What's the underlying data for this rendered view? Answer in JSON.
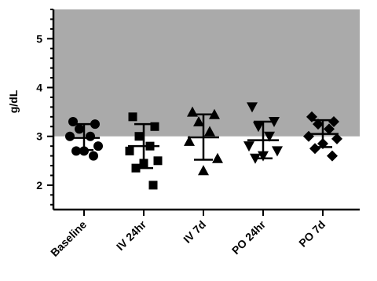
{
  "chart_data": {
    "type": "scatter",
    "ylabel": "g/dL",
    "ylim": [
      1.5,
      5.6
    ],
    "y_ticks": [
      2,
      3,
      4,
      5
    ],
    "y_tick_labels": [
      "2",
      "3",
      "4",
      "5"
    ],
    "shaded_band": {
      "from": 3.0,
      "to": 5.6,
      "color": "#aaaaaa"
    },
    "categories": [
      "Baseline",
      "IV 24hr",
      "IV 7d",
      "PO 24hr",
      "PO 7d"
    ],
    "series": [
      {
        "category": "Baseline",
        "marker": "circle",
        "points": [
          3.3,
          3.25,
          3.15,
          3.0,
          3.0,
          2.8,
          2.7,
          2.7,
          2.6
        ],
        "mean": 2.97,
        "sd_low": 2.72,
        "sd_high": 3.25
      },
      {
        "category": "IV 24hr",
        "marker": "square",
        "points": [
          3.4,
          3.2,
          3.0,
          2.8,
          2.7,
          2.5,
          2.45,
          2.35,
          2.0
        ],
        "mean": 2.8,
        "sd_low": 2.35,
        "sd_high": 3.25
      },
      {
        "category": "IV 7d",
        "marker": "triangle-up",
        "points": [
          3.5,
          3.45,
          3.3,
          3.1,
          2.9,
          2.55,
          2.3
        ],
        "mean": 2.98,
        "sd_low": 2.52,
        "sd_high": 3.45
      },
      {
        "category": "PO 24hr",
        "marker": "triangle-down",
        "points": [
          3.6,
          3.3,
          3.2,
          3.0,
          2.8,
          2.7,
          2.6,
          2.55
        ],
        "mean": 2.92,
        "sd_low": 2.55,
        "sd_high": 3.3
      },
      {
        "category": "PO 7d",
        "marker": "diamond",
        "points": [
          3.4,
          3.3,
          3.25,
          3.15,
          3.0,
          2.95,
          2.85,
          2.75,
          2.6
        ],
        "mean": 3.05,
        "sd_low": 2.78,
        "sd_high": 3.33
      }
    ]
  }
}
